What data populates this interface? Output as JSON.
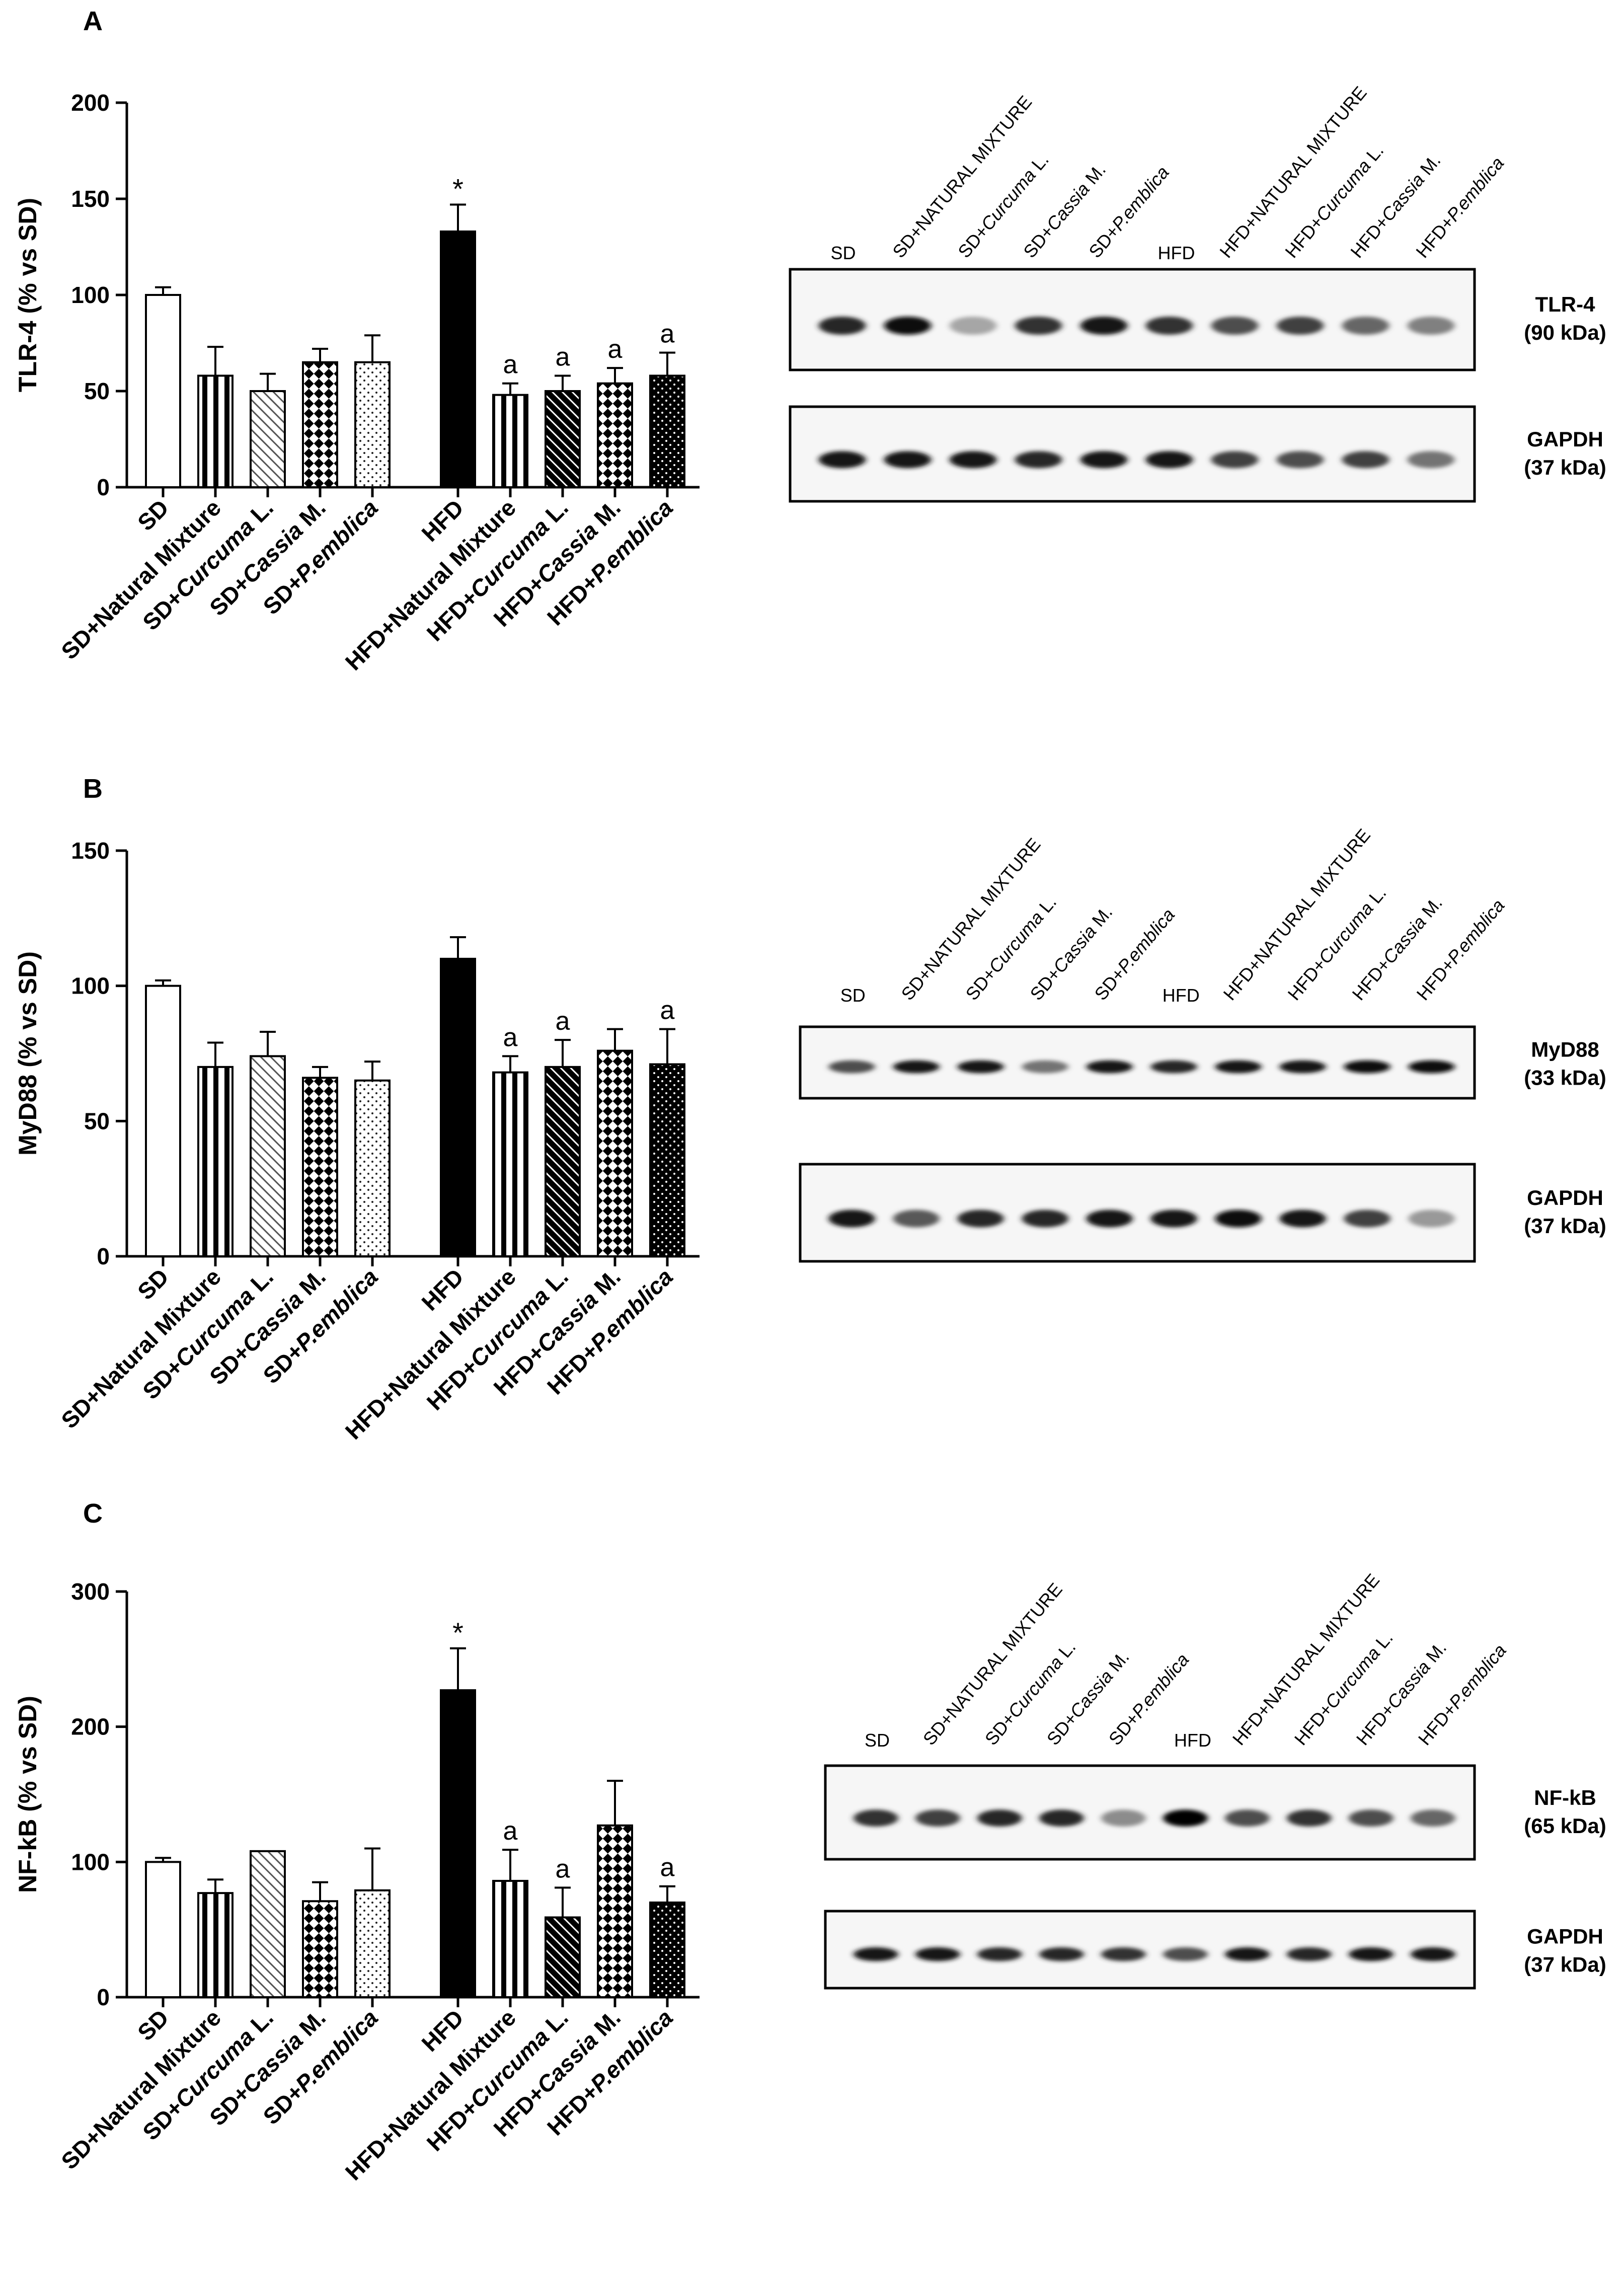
{
  "panels": [
    {
      "letter": "A",
      "chart_data": {
        "type": "bar",
        "ylabel": "TLR-4 (% vs SD)",
        "ylim": [
          0,
          200
        ],
        "yticks": [
          0,
          50,
          100,
          150,
          200
        ],
        "categories": [
          [
            "SD"
          ],
          [
            "SD+Natural Mixture"
          ],
          [
            "SD+",
            "Curcuma",
            " L."
          ],
          [
            "SD+",
            "Cassia",
            " M."
          ],
          [
            "SD+",
            "P.emblica"
          ],
          [
            "HFD"
          ],
          [
            "HFD+Natural Mixture"
          ],
          [
            "HFD+",
            "Curcuma",
            " L."
          ],
          [
            "HFD+",
            "Cassia",
            " M."
          ],
          [
            "HFD+",
            "P.emblica"
          ]
        ],
        "values": [
          100,
          58,
          50,
          65,
          65,
          133,
          48,
          50,
          54,
          58
        ],
        "errors": [
          4,
          15,
          9,
          7,
          14,
          14,
          6,
          8,
          8,
          12
        ],
        "annotations": [
          "",
          "",
          "",
          "",
          "",
          "*",
          "a",
          "a",
          "a",
          "a"
        ]
      },
      "blot": {
        "lanes": [
          [
            "SD"
          ],
          [
            "SD+NATURAL MIXTURE"
          ],
          [
            "SD+",
            "Curcuma",
            " L."
          ],
          [
            "SD+",
            "Cassia",
            " M."
          ],
          [
            "SD+",
            "P.emblica"
          ],
          [
            "HFD"
          ],
          [
            "HFD+NATURAL MIXTURE"
          ],
          [
            "HFD+",
            "Curcuma",
            " L."
          ],
          [
            "HFD+",
            "Cassia",
            " M."
          ],
          [
            "HFD+",
            "P.emblica"
          ]
        ],
        "strips": [
          {
            "name": "TLR-4",
            "size": "(90 kDa)",
            "intensity": [
              0.85,
              0.95,
              0.35,
              0.8,
              0.9,
              0.8,
              0.7,
              0.75,
              0.6,
              0.5
            ]
          },
          {
            "name": "GAPDH",
            "size": "(37 kDa)",
            "intensity": [
              0.9,
              0.9,
              0.9,
              0.85,
              0.9,
              0.9,
              0.75,
              0.7,
              0.75,
              0.55
            ]
          }
        ]
      }
    },
    {
      "letter": "B",
      "chart_data": {
        "type": "bar",
        "ylabel": "MyD88 (% vs SD)",
        "ylim": [
          0,
          150
        ],
        "yticks": [
          0,
          50,
          100,
          150
        ],
        "categories": [
          [
            "SD"
          ],
          [
            "SD+Natural Mixture"
          ],
          [
            "SD+",
            "Curcuma",
            " L."
          ],
          [
            "SD+",
            "Cassia",
            " M."
          ],
          [
            "SD+",
            "P.emblica"
          ],
          [
            "HFD"
          ],
          [
            "HFD+Natural Mixture"
          ],
          [
            "HFD+",
            "Curcuma",
            " L."
          ],
          [
            "HFD+",
            "Cassia",
            " M."
          ],
          [
            "HFD+",
            "P.emblica"
          ]
        ],
        "values": [
          100,
          70,
          74,
          66,
          65,
          110,
          68,
          70,
          76,
          71
        ],
        "errors": [
          2,
          9,
          9,
          4,
          7,
          8,
          6,
          10,
          8,
          13
        ],
        "annotations": [
          "",
          "",
          "",
          "",
          "",
          "",
          "a",
          "a",
          "",
          "a"
        ]
      },
      "blot": {
        "lanes": [
          [
            "SD"
          ],
          [
            "SD+NATURAL MIXTURE"
          ],
          [
            "SD+",
            "Curcuma",
            " L."
          ],
          [
            "SD+",
            "Cassia",
            " M."
          ],
          [
            "SD+",
            "P.emblica"
          ],
          [
            "HFD"
          ],
          [
            "HFD+NATURAL MIXTURE"
          ],
          [
            "HFD+",
            "Curcuma",
            " L."
          ],
          [
            "HFD+",
            "Cassia",
            " M."
          ],
          [
            "HFD+",
            "P.emblica"
          ]
        ],
        "strips": [
          {
            "name": "MyD88",
            "size": "(33 kDa)",
            "intensity": [
              0.7,
              0.9,
              0.9,
              0.55,
              0.9,
              0.85,
              0.9,
              0.9,
              0.95,
              0.95
            ]
          },
          {
            "name": "GAPDH",
            "size": "(37 kDa)",
            "intensity": [
              0.9,
              0.65,
              0.85,
              0.85,
              0.9,
              0.9,
              0.95,
              0.9,
              0.75,
              0.4
            ]
          }
        ]
      }
    },
    {
      "letter": "C",
      "chart_data": {
        "type": "bar",
        "ylabel": "NF-kB (% vs SD)",
        "ylim": [
          0,
          300
        ],
        "yticks": [
          0,
          100,
          200,
          300
        ],
        "categories": [
          [
            "SD"
          ],
          [
            "SD+Natural Mixture"
          ],
          [
            "SD+",
            "Curcuma",
            " L."
          ],
          [
            "SD+",
            "Cassia",
            " M."
          ],
          [
            "SD+",
            "P.emblica"
          ],
          [
            "HFD"
          ],
          [
            "HFD+Natural Mixture"
          ],
          [
            "HFD+",
            "Curcuma",
            " L."
          ],
          [
            "HFD+",
            "Cassia",
            " M."
          ],
          [
            "HFD+",
            "P.emblica"
          ]
        ],
        "values": [
          100,
          77,
          108,
          71,
          79,
          227,
          86,
          59,
          127,
          70
        ],
        "errors": [
          3,
          10,
          0,
          14,
          31,
          31,
          23,
          22,
          33,
          12
        ],
        "annotations": [
          "",
          "",
          "",
          "",
          "",
          "*",
          "a",
          "a",
          "",
          "a"
        ]
      },
      "blot": {
        "lanes": [
          [
            "SD"
          ],
          [
            "SD+NATURAL MIXTURE"
          ],
          [
            "SD+",
            "Curcuma",
            " L."
          ],
          [
            "SD+",
            "Cassia",
            " M."
          ],
          [
            "SD+",
            "P.emblica"
          ],
          [
            "HFD"
          ],
          [
            "HFD+NATURAL MIXTURE"
          ],
          [
            "HFD+",
            "Curcuma",
            " L."
          ],
          [
            "HFD+",
            "Cassia",
            " M."
          ],
          [
            "HFD+",
            "P.emblica"
          ]
        ],
        "strips": [
          {
            "name": "NF-kB",
            "size": "(65 kDa)",
            "intensity": [
              0.8,
              0.75,
              0.85,
              0.85,
              0.45,
              1.0,
              0.7,
              0.8,
              0.7,
              0.6
            ]
          },
          {
            "name": "GAPDH",
            "size": "(37 kDa)",
            "intensity": [
              0.9,
              0.9,
              0.85,
              0.85,
              0.8,
              0.7,
              0.9,
              0.85,
              0.9,
              0.9
            ]
          }
        ]
      }
    }
  ]
}
